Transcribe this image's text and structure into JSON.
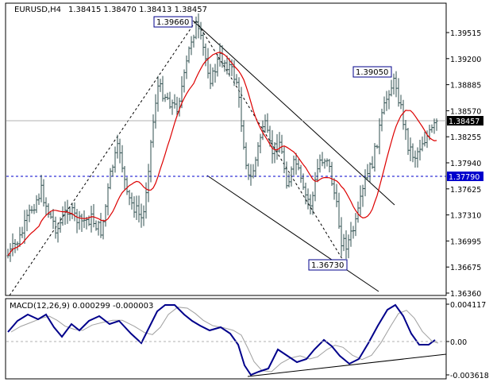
{
  "window": {
    "symbol_tf": "EURUSD,H4",
    "ohlc": "1.38415 1.38470 1.38413 1.38457"
  },
  "indicator": {
    "label": "MACD(12,26,9) 0.000299 -0.000003",
    "ticks": [
      "0.004117",
      "0.00",
      "-0.003618"
    ]
  },
  "colors": {
    "bars": "#2f4f4f",
    "ma": "#dd0000",
    "macd": "#00008b",
    "signal": "#9a9a9a",
    "grid": "#c8c8c8",
    "level": "#0000cc",
    "text": "#000000",
    "background": "#ffffff"
  },
  "chart_data": {
    "type": "candlestick",
    "price_axis": [
      "1.39515",
      "1.39200",
      "1.38885",
      "1.38570",
      "1.38255",
      "1.37940",
      "1.37625",
      "1.37310",
      "1.36995",
      "1.36675",
      "1.36360"
    ],
    "current_price": "1.38457",
    "horizontal_level": "1.37790",
    "annotations": [
      "1.39660",
      "1.39050",
      "1.36730"
    ],
    "grid": true,
    "macd_range": [
      -0.003618,
      0.004117
    ]
  }
}
